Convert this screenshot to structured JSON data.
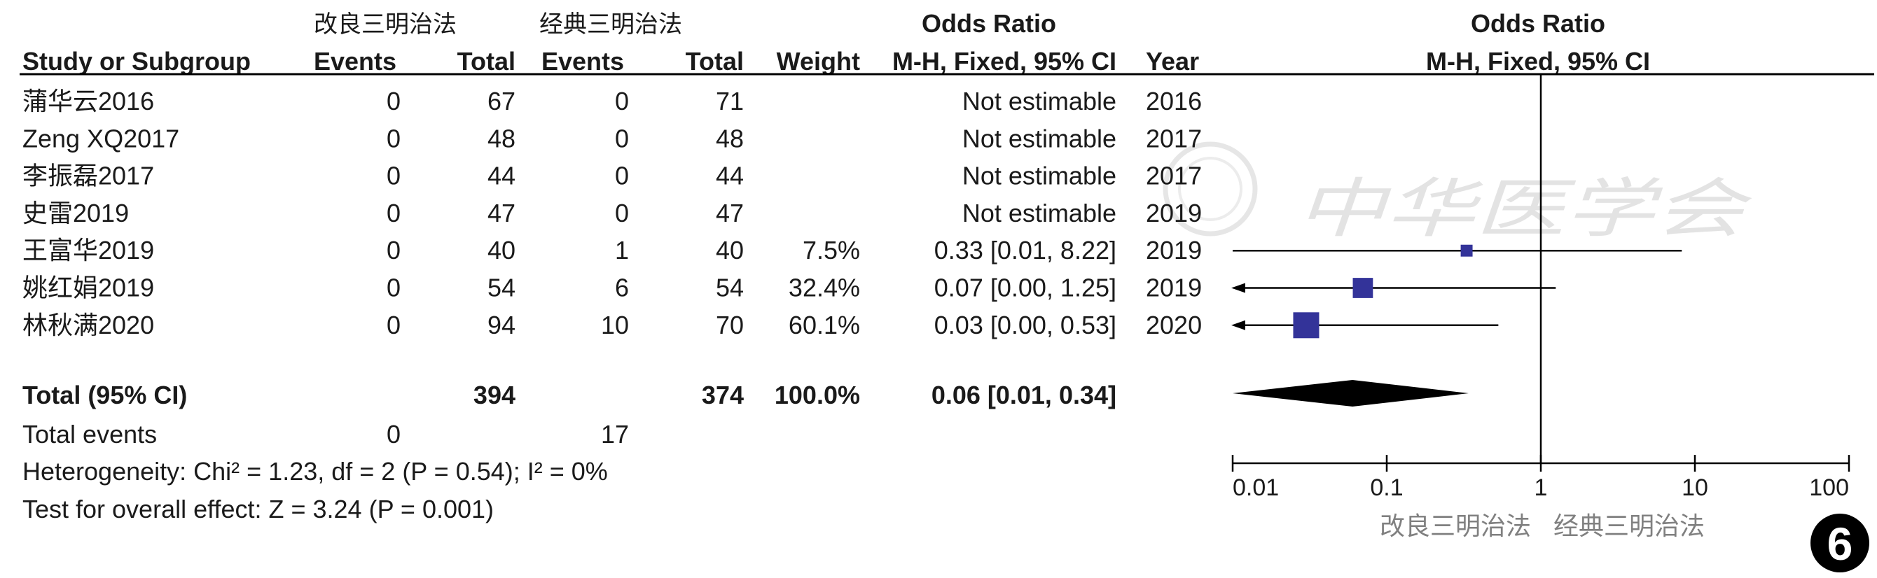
{
  "headers": {
    "group_a": "改良三明治法",
    "group_b": "经典三明治法",
    "odds_ratio": "Odds Ratio",
    "odds_ratio_plot": "Odds Ratio",
    "study_col": "Study or Subgroup",
    "events_a": "Events",
    "total_a": "Total",
    "events_b": "Events",
    "total_b": "Total",
    "weight": "Weight",
    "method": "M-H, Fixed, 95% CI",
    "year": "Year",
    "method_plot": "M-H, Fixed, 95% CI"
  },
  "studies": [
    {
      "study": "蒲华云2016",
      "events_a": "0",
      "total_a": "67",
      "events_b": "0",
      "total_b": "71",
      "weight": "",
      "ci_text": "Not estimable",
      "year": "2016"
    },
    {
      "study": "Zeng XQ2017",
      "events_a": "0",
      "total_a": "48",
      "events_b": "0",
      "total_b": "48",
      "weight": "",
      "ci_text": "Not estimable",
      "year": "2017"
    },
    {
      "study": "李振磊2017",
      "events_a": "0",
      "total_a": "44",
      "events_b": "0",
      "total_b": "44",
      "weight": "",
      "ci_text": "Not estimable",
      "year": "2017"
    },
    {
      "study": "史雷2019",
      "events_a": "0",
      "total_a": "47",
      "events_b": "0",
      "total_b": "47",
      "weight": "",
      "ci_text": "Not estimable",
      "year": "2019"
    },
    {
      "study": "王富华2019",
      "events_a": "0",
      "total_a": "40",
      "events_b": "1",
      "total_b": "40",
      "weight": "7.5%",
      "ci_text": "0.33 [0.01, 8.22]",
      "year": "2019"
    },
    {
      "study": "姚红娟2019",
      "events_a": "0",
      "total_a": "54",
      "events_b": "6",
      "total_b": "54",
      "weight": "32.4%",
      "ci_text": "0.07 [0.00, 1.25]",
      "year": "2019"
    },
    {
      "study": "林秋满2020",
      "events_a": "0",
      "total_a": "94",
      "events_b": "10",
      "total_b": "70",
      "weight": "60.1%",
      "ci_text": "0.03 [0.00, 0.53]",
      "year": "2020"
    }
  ],
  "total": {
    "label": "Total (95% CI)",
    "total_a": "394",
    "total_b": "374",
    "weight": "100.0%",
    "ci_text": "0.06 [0.01, 0.34]"
  },
  "total_events": {
    "label": "Total events",
    "events_a": "0",
    "events_b": "17"
  },
  "heterogeneity": "Heterogeneity: Chi² = 1.23, df = 2 (P = 0.54); I² = 0%",
  "overall_effect": "Test for overall effect: Z = 3.24 (P = 0.001)",
  "axis_footer": {
    "left": "改良三明治法",
    "right": "经典三明治法"
  },
  "watermark": "中华医学会",
  "figure_number": "6",
  "colors": {
    "marker": "#333399",
    "line": "#000000",
    "text": "#1a1a1a",
    "footer": "#808080"
  },
  "chart_data": {
    "type": "forest",
    "x_scale": "log",
    "xlim": [
      0.01,
      100
    ],
    "ticks": [
      0.01,
      0.1,
      1,
      10,
      100
    ],
    "tick_labels": [
      "0.01",
      "0.1",
      "1",
      "10",
      "100"
    ],
    "null_line": 1,
    "points": [
      {
        "study": "王富华2019",
        "or": 0.33,
        "lo": 0.01,
        "hi": 8.22,
        "weight": 7.5,
        "arrow_left": false
      },
      {
        "study": "姚红娟2019",
        "or": 0.07,
        "lo": 0.0,
        "hi": 1.25,
        "weight": 32.4,
        "arrow_left": true
      },
      {
        "study": "林秋满2020",
        "or": 0.03,
        "lo": 0.0,
        "hi": 0.53,
        "weight": 60.1,
        "arrow_left": true
      }
    ],
    "overall": {
      "or": 0.06,
      "lo": 0.01,
      "hi": 0.34
    }
  }
}
